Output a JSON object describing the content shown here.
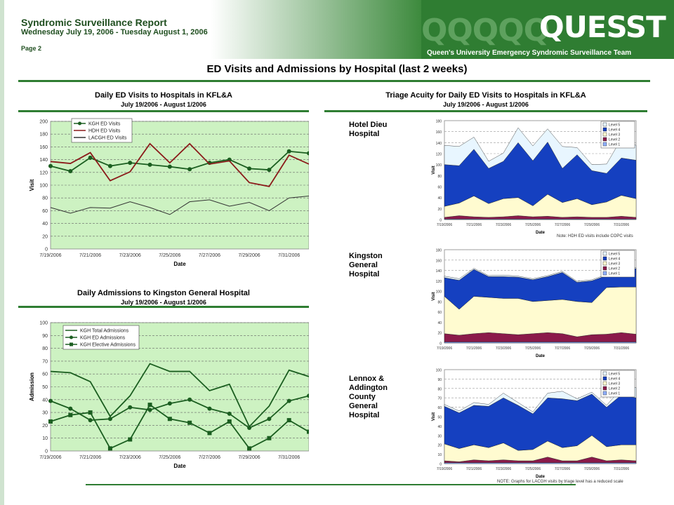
{
  "header": {
    "report_title": "Syndromic Surveillance Report",
    "date_range": "Wednesday July 19, 2006 - Tuesday August 1, 2006",
    "page": "Page 2",
    "logo_q": "QQQQQ",
    "logo_text": "QUESST",
    "logo_subtitle": "Queen's University Emergency Syndromic Surveillance Team"
  },
  "main_title": "ED Visits and Admissions by Hospital (last 2 weeks)",
  "colors": {
    "green_dark": "#2f7d32",
    "plot_bg": "#cdf2c2",
    "series_green": "#1b5e20",
    "series_red": "#8b1a1a",
    "series_gray": "#333333"
  },
  "hospitals": [
    {
      "name": "Hotel Dieu Hospital"
    },
    {
      "name": "Kingston General Hospital"
    },
    {
      "name": "Lennox & Addington County General Hospital"
    }
  ],
  "notes": {
    "hdh": "Note: HDH ED visits include COPC visits",
    "lacgh": "NOTE:    Graphs for LACGH visits by triage level has a reduced scale"
  },
  "chart_data": [
    {
      "type": "line",
      "title": "Daily ED Visits to Hospitals in KFL&A",
      "subtitle": "July 19/2006 - August 1/2006",
      "xlabel": "Date",
      "ylabel": "Visit",
      "ylim": [
        0,
        200
      ],
      "yticks": [
        0,
        20,
        40,
        60,
        80,
        100,
        120,
        140,
        160,
        180,
        200
      ],
      "x": [
        "7/19/2006",
        "7/20/2006",
        "7/21/2006",
        "7/22/2006",
        "7/23/2006",
        "7/24/2006",
        "7/25/2006",
        "7/26/2006",
        "7/27/2006",
        "7/28/2006",
        "7/29/2006",
        "7/30/2006",
        "7/31/2006",
        "8/1/2006"
      ],
      "xtick_labels": [
        "7/19/2006",
        "7/21/2006",
        "7/23/2006",
        "7/25/2006",
        "7/27/2006",
        "7/29/2006",
        "7/31/2006"
      ],
      "legend_position": "top-left",
      "grid": true,
      "series": [
        {
          "name": "KGH ED Visits",
          "color": "#1b5e20",
          "marker": "circle",
          "values": [
            130,
            122,
            143,
            130,
            135,
            132,
            129,
            125,
            135,
            140,
            126,
            124,
            153,
            150
          ]
        },
        {
          "name": "HDH ED Visits",
          "color": "#8b1a1a",
          "marker": "none",
          "values": [
            137,
            134,
            151,
            107,
            121,
            165,
            135,
            165,
            133,
            138,
            104,
            98,
            147,
            133
          ]
        },
        {
          "name": "LACGH ED Visits",
          "color": "#333333",
          "marker": "none",
          "values": [
            65,
            56,
            65,
            64,
            74,
            65,
            54,
            74,
            77,
            67,
            73,
            60,
            80,
            83
          ]
        }
      ]
    },
    {
      "type": "line",
      "title": "Daily Admissions to Kingston General Hospital",
      "subtitle": "July 19/2006 - August 1/2006",
      "xlabel": "Date",
      "ylabel": "Admission",
      "ylim": [
        0,
        100
      ],
      "yticks": [
        0,
        10,
        20,
        30,
        40,
        50,
        60,
        70,
        80,
        90,
        100
      ],
      "x": [
        "7/19/2006",
        "7/20/2006",
        "7/21/2006",
        "7/22/2006",
        "7/23/2006",
        "7/24/2006",
        "7/25/2006",
        "7/26/2006",
        "7/27/2006",
        "7/28/2006",
        "7/29/2006",
        "7/30/2006",
        "7/31/2006",
        "8/1/2006"
      ],
      "xtick_labels": [
        "7/19/2006",
        "7/21/2006",
        "7/23/2006",
        "7/25/2006",
        "7/27/2006",
        "7/29/2006",
        "7/31/2006"
      ],
      "legend_position": "top-left",
      "grid": true,
      "series": [
        {
          "name": "KGH Total Admissions",
          "color": "#1b5e20",
          "marker": "none",
          "values": [
            62,
            61,
            54,
            27,
            43,
            68,
            62,
            62,
            47,
            52,
            19,
            35,
            63,
            58
          ]
        },
        {
          "name": "KGH ED Admissions",
          "color": "#1b5e20",
          "marker": "circle",
          "values": [
            39,
            33,
            24,
            25,
            34,
            32,
            37,
            40,
            33,
            29,
            18,
            25,
            39,
            43
          ]
        },
        {
          "name": "KGH Elective Admissions",
          "color": "#1b5e20",
          "marker": "square",
          "values": [
            23,
            28,
            30,
            2,
            9,
            36,
            25,
            22,
            14,
            23,
            2,
            10,
            24,
            15
          ]
        }
      ]
    },
    {
      "type": "area",
      "title": "Triage Acuity for Daily ED Visits to Hospitals in KFL&A",
      "subtitle": "July 19/2006 - August 1/2006",
      "panel": "Hotel Dieu Hospital",
      "stacked": true,
      "xlabel": "Date",
      "ylabel": "Visit",
      "ylim": [
        0,
        180
      ],
      "yticks": [
        0,
        20,
        40,
        60,
        80,
        100,
        120,
        140,
        160,
        180
      ],
      "x": [
        "7/19/2006",
        "7/20/2006",
        "7/21/2006",
        "7/22/2006",
        "7/23/2006",
        "7/24/2006",
        "7/25/2006",
        "7/26/2006",
        "7/27/2006",
        "7/28/2006",
        "7/29/2006",
        "7/30/2006",
        "7/31/2006",
        "8/1/2006"
      ],
      "xtick_labels": [
        "7/19/2006",
        "7/21/2006",
        "7/23/2006",
        "7/25/2006",
        "7/27/2006",
        "7/29/2006",
        "7/31/2006"
      ],
      "legend_position": "top-right",
      "series": [
        {
          "name": "Level 1",
          "color": "#8fb0ff",
          "values": [
            1,
            1,
            1,
            1,
            1,
            1,
            1,
            1,
            1,
            1,
            1,
            1,
            1,
            1
          ]
        },
        {
          "name": "Level 2",
          "color": "#8b1a4a",
          "values": [
            3,
            6,
            4,
            3,
            4,
            6,
            4,
            5,
            3,
            4,
            3,
            3,
            5,
            3
          ]
        },
        {
          "name": "Level 3",
          "color": "#fffbd0",
          "values": [
            20,
            23,
            38,
            25,
            33,
            33,
            20,
            40,
            27,
            33,
            23,
            28,
            38,
            34
          ]
        },
        {
          "name": "Level 4",
          "color": "#1540c0",
          "values": [
            76,
            68,
            85,
            64,
            68,
            100,
            82,
            95,
            62,
            80,
            62,
            52,
            68,
            70
          ]
        },
        {
          "name": "Level 5",
          "color": "#e8f6ff",
          "values": [
            35,
            35,
            22,
            13,
            15,
            27,
            27,
            24,
            40,
            13,
            11,
            17,
            35,
            27
          ]
        }
      ]
    },
    {
      "type": "area",
      "panel": "Kingston General Hospital",
      "stacked": true,
      "xlabel": "Date",
      "ylabel": "Visit",
      "ylim": [
        0,
        180
      ],
      "yticks": [
        0,
        20,
        40,
        60,
        80,
        100,
        120,
        140,
        160,
        180
      ],
      "x": [
        "7/19/2006",
        "7/20/2006",
        "7/21/2006",
        "7/22/2006",
        "7/23/2006",
        "7/24/2006",
        "7/25/2006",
        "7/26/2006",
        "7/27/2006",
        "7/28/2006",
        "7/29/2006",
        "7/30/2006",
        "7/31/2006",
        "8/1/2006"
      ],
      "xtick_labels": [
        "7/19/2006",
        "7/21/2006",
        "7/23/2006",
        "7/25/2006",
        "7/27/2006",
        "7/29/2006",
        "7/31/2006"
      ],
      "legend_position": "top-right",
      "series": [
        {
          "name": "Level 1",
          "color": "#8fb0ff",
          "values": [
            2,
            2,
            2,
            2,
            2,
            2,
            2,
            2,
            2,
            2,
            2,
            2,
            2,
            2
          ]
        },
        {
          "name": "Level 2",
          "color": "#8b1a4a",
          "values": [
            16,
            13,
            16,
            18,
            16,
            14,
            16,
            18,
            16,
            10,
            14,
            15,
            18,
            15
          ]
        },
        {
          "name": "Level 3",
          "color": "#fffbd0",
          "values": [
            72,
            50,
            72,
            68,
            68,
            70,
            62,
            62,
            66,
            68,
            62,
            90,
            88,
            91
          ]
        },
        {
          "name": "Level 4",
          "color": "#1540c0",
          "values": [
            36,
            56,
            52,
            40,
            42,
            41,
            42,
            46,
            52,
            37,
            42,
            23,
            40,
            35
          ]
        },
        {
          "name": "Level 5",
          "color": "#e8f6ff",
          "values": [
            3,
            3,
            2,
            2,
            3,
            2,
            2,
            2,
            2,
            2,
            2,
            2,
            2,
            2
          ]
        }
      ]
    },
    {
      "type": "area",
      "panel": "Lennox & Addington County General Hospital",
      "stacked": true,
      "xlabel": "Date",
      "ylabel": "Visit",
      "ylim": [
        0,
        100
      ],
      "yticks": [
        0,
        10,
        20,
        30,
        40,
        50,
        60,
        70,
        80,
        90,
        100
      ],
      "x": [
        "7/19/2006",
        "7/20/2006",
        "7/21/2006",
        "7/22/2006",
        "7/23/2006",
        "7/24/2006",
        "7/25/2006",
        "7/26/2006",
        "7/27/2006",
        "7/28/2006",
        "7/29/2006",
        "7/30/2006",
        "7/31/2006",
        "8/1/2006"
      ],
      "xtick_labels": [
        "7/19/2006",
        "7/21/2006",
        "7/23/2006",
        "7/25/2006",
        "7/27/2006",
        "7/29/2006",
        "7/31/2006"
      ],
      "legend_position": "top-right",
      "series": [
        {
          "name": "Level 1",
          "color": "#8fb0ff",
          "values": [
            1,
            1,
            1,
            1,
            1,
            1,
            1,
            1,
            1,
            1,
            1,
            1,
            1,
            1
          ]
        },
        {
          "name": "Level 2",
          "color": "#8b1a4a",
          "values": [
            2,
            1,
            3,
            2,
            3,
            2,
            2,
            6,
            2,
            2,
            6,
            2,
            3,
            2
          ]
        },
        {
          "name": "Level 3",
          "color": "#fffbd0",
          "values": [
            18,
            14,
            16,
            14,
            18,
            11,
            12,
            17,
            14,
            16,
            23,
            15,
            16,
            17
          ]
        },
        {
          "name": "Level 4",
          "color": "#1540c0",
          "values": [
            40,
            38,
            42,
            44,
            48,
            48,
            38,
            46,
            52,
            48,
            44,
            42,
            53,
            50
          ]
        },
        {
          "name": "Level 5",
          "color": "#e8f6ff",
          "values": [
            2,
            2,
            3,
            2,
            5,
            3,
            2,
            5,
            8,
            2,
            2,
            2,
            7,
            11
          ]
        }
      ]
    }
  ]
}
